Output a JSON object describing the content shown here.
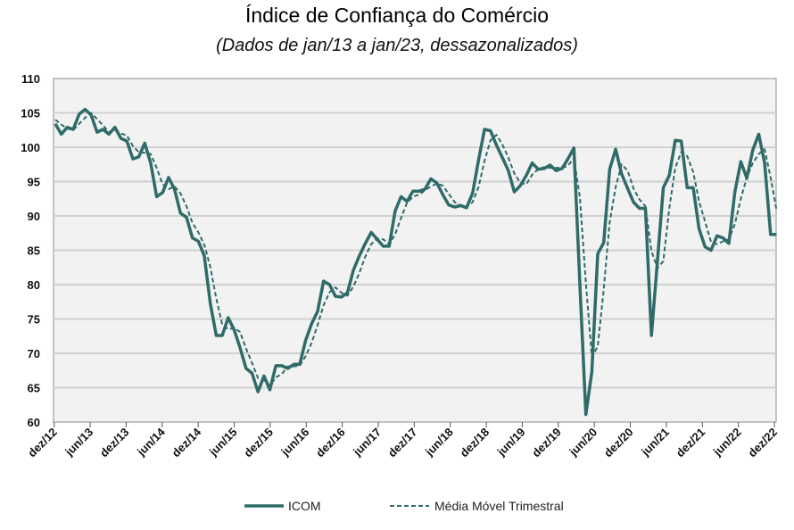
{
  "chart_data": {
    "type": "line",
    "title": "Índice de Confiança do Comércio",
    "subtitle": "(Dados de jan/13 a jan/23, dessazonalizados)",
    "xlabel": "",
    "ylabel": "",
    "ylim": [
      60,
      110
    ],
    "yticks": [
      60,
      65,
      70,
      75,
      80,
      85,
      90,
      95,
      100,
      105,
      110
    ],
    "xtick_labels": [
      "dez/12",
      "jun/13",
      "dez/13",
      "jun/14",
      "dez/14",
      "jun/15",
      "dez/15",
      "jun/16",
      "dez/16",
      "jun/17",
      "dez/17",
      "jun/18",
      "dez/18",
      "jun/19",
      "dez/19",
      "jun/20",
      "dez/20",
      "jun/21",
      "dez/21",
      "jun/22",
      "dez/22"
    ],
    "grid": true,
    "legend_position": "bottom",
    "colors": {
      "line": "#2f6b68",
      "plot_bg": "#f2f2f2",
      "grid": "#d0d0d0"
    },
    "series": [
      {
        "name": "ICOM",
        "style": "solid",
        "values": [
          103.4,
          101.9,
          102.9,
          102.6,
          104.8,
          105.5,
          104.7,
          102.2,
          102.6,
          101.9,
          102.9,
          101.3,
          100.9,
          98.3,
          98.6,
          100.6,
          97.7,
          92.8,
          93.4,
          95.6,
          93.9,
          90.4,
          89.8,
          86.8,
          86.3,
          84.2,
          77.3,
          72.6,
          72.6,
          75.2,
          73.4,
          70.8,
          67.8,
          67.1,
          64.4,
          66.7,
          64.7,
          68.2,
          68.2,
          67.8,
          68.4,
          68.4,
          71.9,
          74.3,
          76.1,
          80.5,
          80.0,
          78.3,
          78.2,
          78.8,
          82.1,
          84.2,
          86.0,
          87.6,
          86.6,
          85.6,
          85.6,
          90.7,
          92.8,
          92.1,
          93.6,
          93.6,
          93.9,
          95.4,
          94.8,
          93.1,
          91.6,
          91.3,
          91.5,
          91.2,
          93.3,
          98.1,
          102.6,
          102.4,
          100.3,
          98.5,
          96.6,
          93.5,
          94.4,
          95.9,
          97.7,
          96.8,
          96.9,
          97.4,
          96.6,
          96.9,
          98.3,
          99.9,
          80.0,
          61.1,
          67.3,
          84.5,
          86.1,
          96.8,
          99.7,
          96.1,
          94.0,
          92.0,
          91.1,
          91.1,
          72.6,
          83.4,
          94.1,
          95.9,
          101.0,
          100.9,
          94.1,
          94.1,
          88.1,
          85.5,
          85.0,
          87.1,
          86.8,
          86.0,
          93.5,
          97.9,
          95.5,
          99.6,
          101.9,
          97.7,
          87.3,
          87.3
        ]
      },
      {
        "name": "Média Móvel Trimestral",
        "style": "dashed",
        "values": [
          104.0,
          103.3,
          102.7,
          102.5,
          103.4,
          104.3,
          105.0,
          104.1,
          103.2,
          102.2,
          102.5,
          102.0,
          101.7,
          100.2,
          99.3,
          99.2,
          99.0,
          97.0,
          94.6,
          93.9,
          94.3,
          93.3,
          91.4,
          89.0,
          87.6,
          85.8,
          82.6,
          78.0,
          74.2,
          73.5,
          73.7,
          73.1,
          70.7,
          68.6,
          66.4,
          66.1,
          65.3,
          66.5,
          67.0,
          68.1,
          68.1,
          68.2,
          69.6,
          71.5,
          74.1,
          77.0,
          78.9,
          79.6,
          78.8,
          78.4,
          79.7,
          81.7,
          84.1,
          85.9,
          86.7,
          86.6,
          85.9,
          87.3,
          89.7,
          91.9,
          92.8,
          93.1,
          93.7,
          94.3,
          94.7,
          94.4,
          93.2,
          92.0,
          91.5,
          91.3,
          92.0,
          94.2,
          98.0,
          101.0,
          101.8,
          100.4,
          98.5,
          96.2,
          94.8,
          94.6,
          96.0,
          96.8,
          97.1,
          97.0,
          97.0,
          97.0,
          97.3,
          98.4,
          92.7,
          80.3,
          69.5,
          71.0,
          79.3,
          89.1,
          94.2,
          97.5,
          96.6,
          94.0,
          92.4,
          91.4,
          84.9,
          82.4,
          83.4,
          91.1,
          97.0,
          99.3,
          98.7,
          96.4,
          92.1,
          89.2,
          86.2,
          85.9,
          86.3,
          86.6,
          88.8,
          92.5,
          95.6,
          97.7,
          99.0,
          99.7,
          95.6,
          90.8
        ]
      }
    ]
  }
}
